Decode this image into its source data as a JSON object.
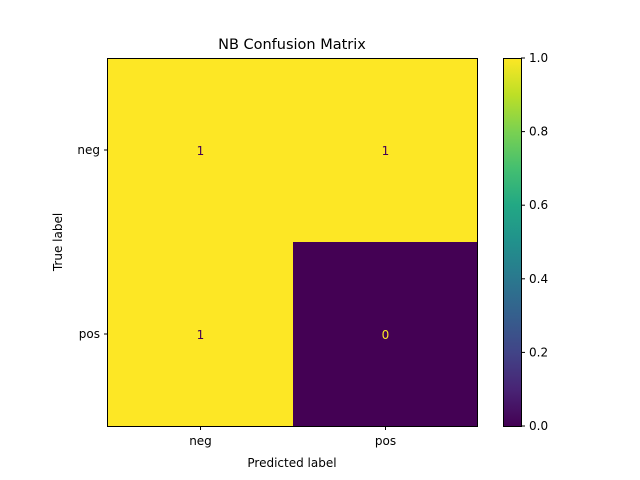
{
  "chart_data": {
    "type": "heatmap",
    "title": "NB Confusion Matrix",
    "xlabel": "Predicted label",
    "ylabel": "True label",
    "x_categories": [
      "neg",
      "pos"
    ],
    "y_categories": [
      "neg",
      "pos"
    ],
    "values": [
      [
        1,
        1
      ],
      [
        1,
        0
      ]
    ],
    "colorbar": {
      "min": 0.0,
      "max": 1.0,
      "ticks": [
        0.0,
        0.2,
        0.4,
        0.6,
        0.8,
        1.0
      ],
      "tick_labels": [
        "0.0",
        "0.2",
        "0.4",
        "0.6",
        "0.8",
        "1.0"
      ]
    },
    "colormap": "viridis",
    "colors": {
      "high": "#fde725",
      "low": "#440154"
    },
    "text_colors": {
      "on_high": "#440154",
      "on_low": "#fde725"
    },
    "grid": false
  }
}
